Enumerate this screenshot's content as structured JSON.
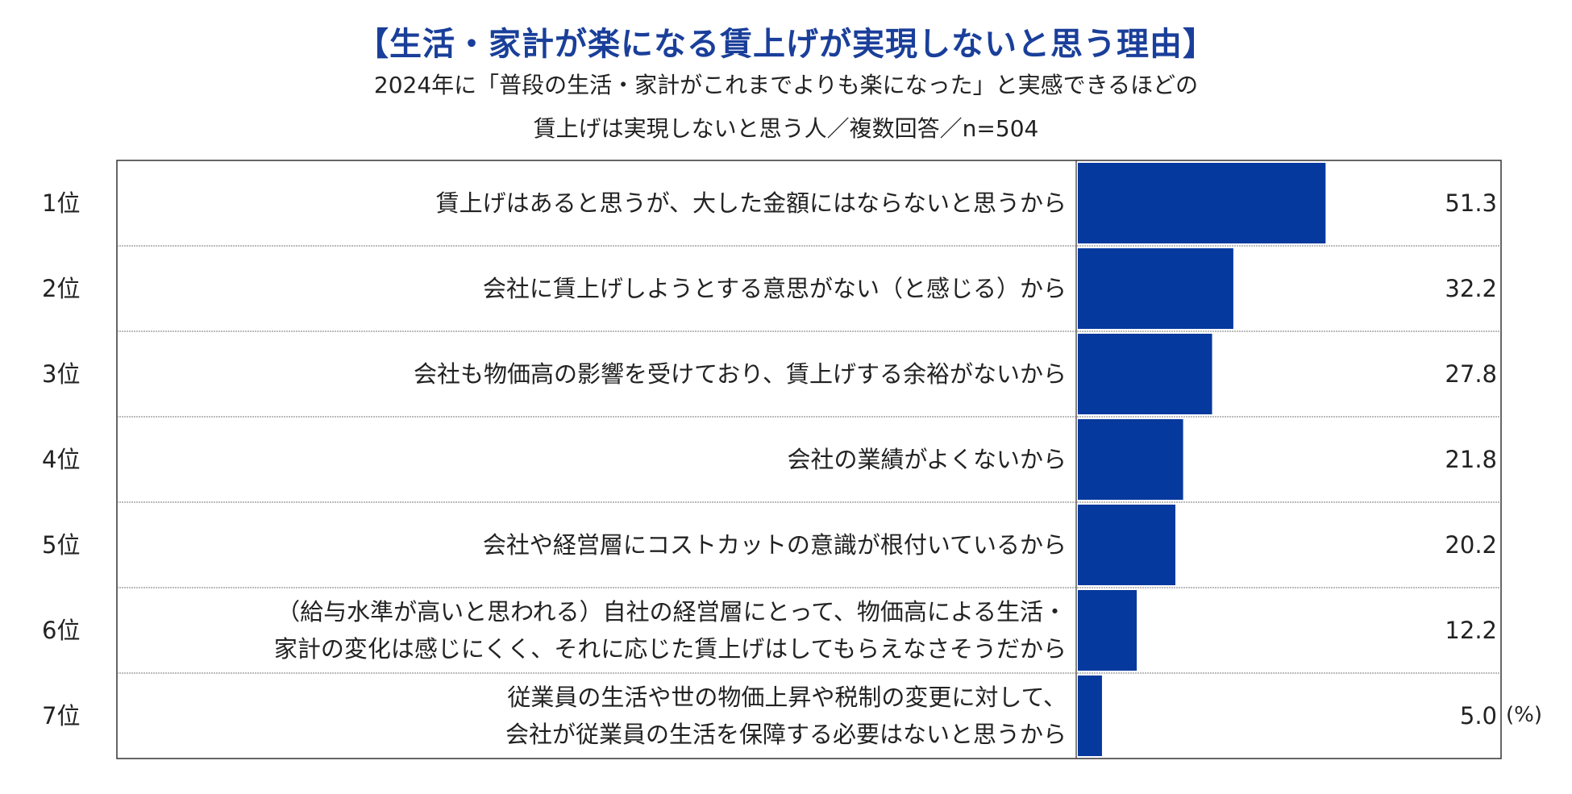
{
  "chart_data": {
    "type": "bar",
    "orientation": "horizontal",
    "title": "【生活・家計が楽になる賃上げが実現しないと思う理由】",
    "subtitle_lines": [
      "2024年に「普段の生活・家計がこれまでよりも楽になった」と実感できるほどの",
      "賃上げは実現しないと思う人／複数回答／n=504"
    ],
    "unit": "(%)",
    "xlim": [
      0,
      100
    ],
    "bar_color": "#06399e",
    "ranks": [
      "1位",
      "2位",
      "3位",
      "4位",
      "5位",
      "6位",
      "7位"
    ],
    "categories": [
      [
        "賃上げはあると思うが、大した金額にはならないと思うから"
      ],
      [
        "会社に賃上げしようとする意思がない（と感じる）から"
      ],
      [
        "会社も物価高の影響を受けており、賃上げする余裕がないから"
      ],
      [
        "会社の業績がよくないから"
      ],
      [
        "会社や経営層にコストカットの意識が根付いているから"
      ],
      [
        "（給与水準が高いと思われる）自社の経営層にとって、物価高による生活・",
        "家計の変化は感じにくく、それに応じた賃上げはしてもらえなさそうだから"
      ],
      [
        "従業員の生活や世の物価上昇や税制の変更に対して、",
        "会社が従業員の生活を保障する必要はないと思うから"
      ]
    ],
    "values": [
      51.3,
      32.2,
      27.8,
      21.8,
      20.2,
      12.2,
      5.0
    ],
    "value_labels": [
      "51.3",
      "32.2",
      "27.8",
      "21.8",
      "20.2",
      "12.2",
      "5.0"
    ]
  }
}
